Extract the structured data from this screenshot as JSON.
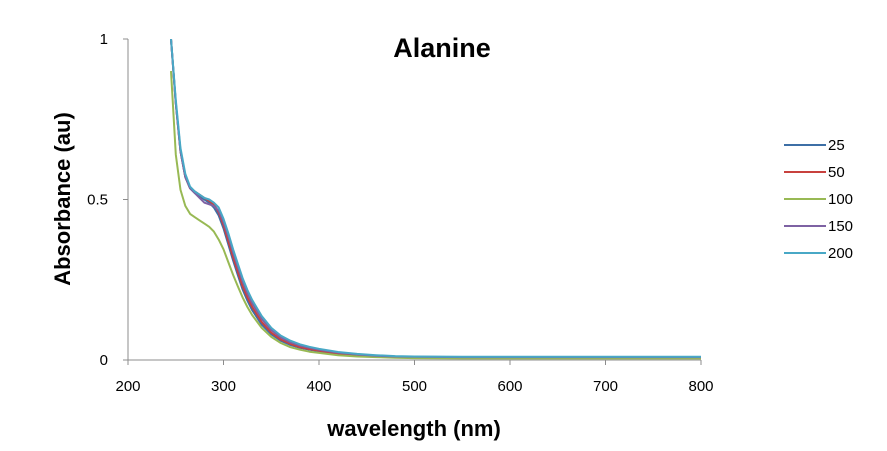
{
  "chart_data": {
    "type": "line",
    "title": "Alanine",
    "xlabel": "wavelength (nm)",
    "ylabel": "Absorbance (au)",
    "xlim": [
      200,
      800
    ],
    "ylim": [
      0,
      1
    ],
    "x_ticks": [
      "200",
      "300",
      "400",
      "500",
      "600",
      "700",
      "800"
    ],
    "y_ticks": [
      "0",
      "0.5",
      "1"
    ],
    "grid": false,
    "legend_position": "right",
    "x": [
      245,
      250,
      255,
      260,
      265,
      270,
      275,
      280,
      285,
      290,
      295,
      300,
      305,
      310,
      315,
      320,
      325,
      330,
      340,
      350,
      360,
      370,
      380,
      390,
      400,
      420,
      440,
      460,
      480,
      500,
      550,
      600,
      650,
      700,
      750,
      800
    ],
    "series": [
      {
        "name": "25",
        "color": "#3d6fa6",
        "values": [
          1.0,
          0.8,
          0.65,
          0.57,
          0.535,
          0.52,
          0.51,
          0.5,
          0.49,
          0.475,
          0.45,
          0.41,
          0.36,
          0.31,
          0.265,
          0.22,
          0.185,
          0.155,
          0.11,
          0.08,
          0.06,
          0.047,
          0.038,
          0.032,
          0.027,
          0.02,
          0.015,
          0.012,
          0.01,
          0.009,
          0.008,
          0.008,
          0.008,
          0.008,
          0.008,
          0.008
        ]
      },
      {
        "name": "50",
        "color": "#c8413e",
        "values": [
          1.0,
          0.8,
          0.65,
          0.57,
          0.535,
          0.525,
          0.515,
          0.505,
          0.495,
          0.485,
          0.46,
          0.42,
          0.37,
          0.32,
          0.275,
          0.23,
          0.195,
          0.165,
          0.118,
          0.085,
          0.064,
          0.05,
          0.04,
          0.034,
          0.029,
          0.021,
          0.016,
          0.012,
          0.01,
          0.009,
          0.008,
          0.008,
          0.008,
          0.008,
          0.008,
          0.008
        ]
      },
      {
        "name": "100",
        "color": "#98b954",
        "values": [
          0.9,
          0.64,
          0.53,
          0.48,
          0.455,
          0.445,
          0.435,
          0.425,
          0.415,
          0.4,
          0.375,
          0.345,
          0.305,
          0.265,
          0.23,
          0.195,
          0.165,
          0.14,
          0.1,
          0.072,
          0.053,
          0.04,
          0.032,
          0.026,
          0.022,
          0.015,
          0.011,
          0.009,
          0.007,
          0.006,
          0.005,
          0.005,
          0.005,
          0.005,
          0.005,
          0.005
        ]
      },
      {
        "name": "150",
        "color": "#7e62a3",
        "values": [
          1.0,
          0.8,
          0.65,
          0.57,
          0.535,
          0.52,
          0.505,
          0.49,
          0.485,
          0.48,
          0.465,
          0.43,
          0.385,
          0.335,
          0.29,
          0.245,
          0.208,
          0.177,
          0.128,
          0.093,
          0.07,
          0.055,
          0.045,
          0.038,
          0.032,
          0.023,
          0.017,
          0.013,
          0.011,
          0.01,
          0.009,
          0.009,
          0.009,
          0.009,
          0.009,
          0.009
        ]
      },
      {
        "name": "200",
        "color": "#48a8c6",
        "values": [
          1.0,
          0.81,
          0.66,
          0.58,
          0.54,
          0.525,
          0.515,
          0.505,
          0.5,
          0.49,
          0.475,
          0.44,
          0.395,
          0.345,
          0.3,
          0.255,
          0.218,
          0.187,
          0.137,
          0.1,
          0.076,
          0.06,
          0.049,
          0.041,
          0.035,
          0.025,
          0.019,
          0.015,
          0.012,
          0.011,
          0.01,
          0.01,
          0.01,
          0.01,
          0.01,
          0.01
        ]
      }
    ]
  }
}
